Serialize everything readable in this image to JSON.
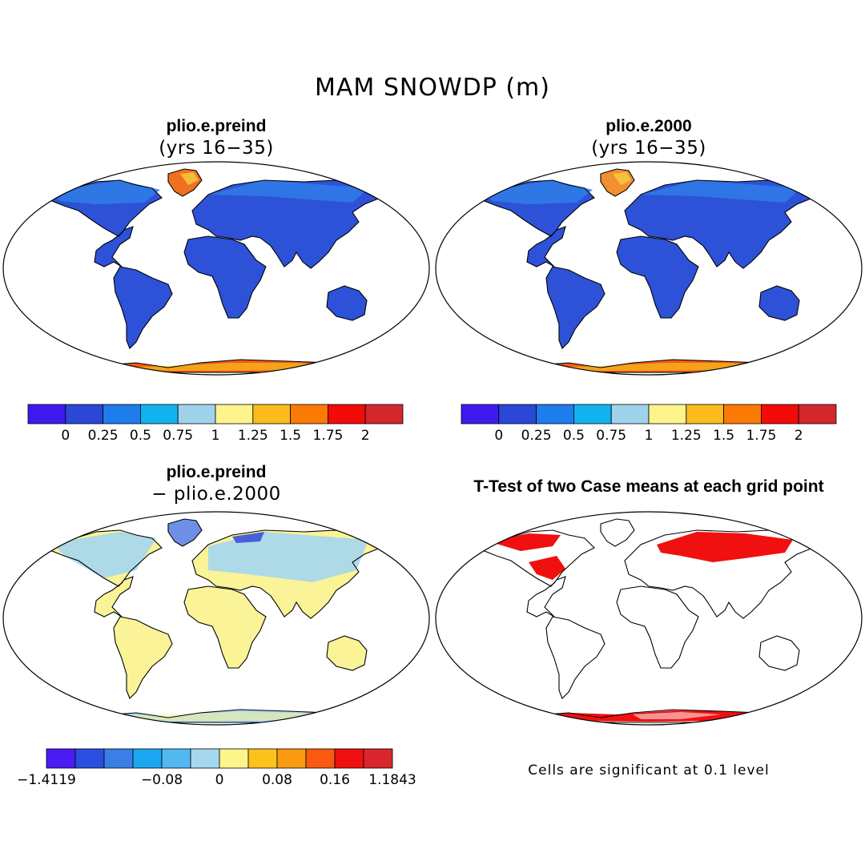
{
  "title": "MAM SNOWDP (m)",
  "panels": [
    {
      "title": "plio.e.preind",
      "subtitle": "(yrs 16−35)",
      "colorbar": {
        "colors": [
          "#3f19f0",
          "#2a47d6",
          "#1f7cec",
          "#12b2f0",
          "#9fd3ec",
          "#fdf48c",
          "#fbbb1c",
          "#fb7a06",
          "#f50a0a",
          "#d2282c"
        ],
        "tick_labels": [
          "0",
          "0.25",
          "0.5",
          "0.75",
          "1",
          "1.25",
          "1.5",
          "1.75",
          "2"
        ]
      },
      "fill_colors": {
        "land": "#2d52d8",
        "high_lat": "#2f7ee8",
        "antarctica_a": "#f25a10",
        "antarctica_b": "#f5c020",
        "greenland": "#f07020"
      }
    },
    {
      "title": "plio.e.2000",
      "subtitle": "(yrs 16−35)",
      "colorbar": {
        "colors": [
          "#3f19f0",
          "#2a47d6",
          "#1f7cec",
          "#12b2f0",
          "#9fd3ec",
          "#fdf48c",
          "#fbbb1c",
          "#fb7a06",
          "#f50a0a",
          "#d2282c"
        ],
        "tick_labels": [
          "0",
          "0.25",
          "0.5",
          "0.75",
          "1",
          "1.25",
          "1.5",
          "1.75",
          "2"
        ]
      },
      "fill_colors": {
        "land": "#2d52d8",
        "high_lat": "#2f7ee8",
        "antarctica_a": "#f25a10",
        "antarctica_b": "#f5c020",
        "greenland": "#f09030"
      }
    },
    {
      "title": "plio.e.preind",
      "subtitle": "− plio.e.2000",
      "colorbar": {
        "colors": [
          "#4a1cf2",
          "#2a4ee0",
          "#3a7fe6",
          "#1aa7ef",
          "#52b8f2",
          "#a5d8ef",
          "#fdf48c",
          "#fbc21c",
          "#fb9a10",
          "#f75a10",
          "#f01010",
          "#d8262c"
        ],
        "tick_labels": [
          "−1.4119",
          "",
          "−0.08",
          "0",
          "0.08",
          "0.16",
          "1.1843"
        ]
      },
      "fill_colors": {
        "land": "#fbf397",
        "high_lat": "#a5d6ee",
        "antarctica_a": "#a9d8ef",
        "antarctica_b": "#fbf397",
        "greenland": "#6f8fe6"
      }
    },
    {
      "title": "T-Test of two Case means at each grid point",
      "subtitle": "",
      "footnote": "Cells are significant at 0.1 level",
      "fill_colors": {
        "significant": "#f01010"
      }
    }
  ]
}
